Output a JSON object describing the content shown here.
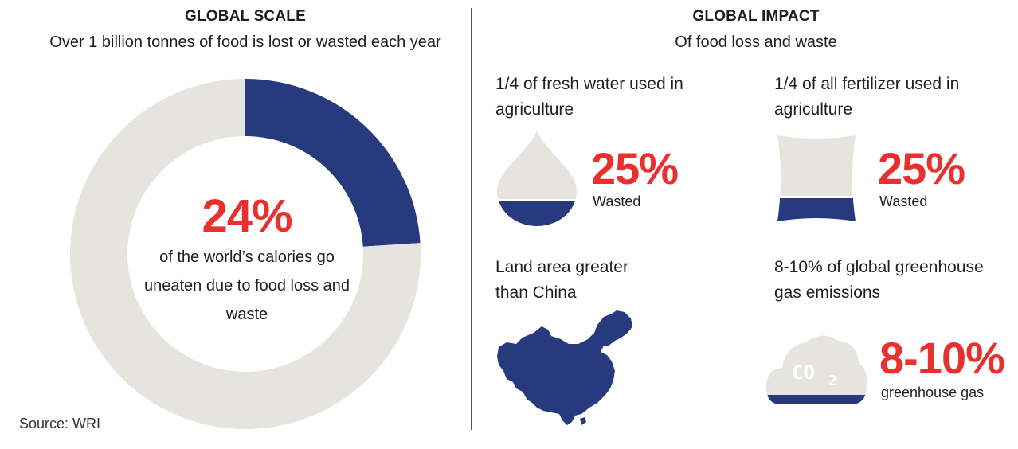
{
  "left": {
    "title": "GLOBAL SCALE",
    "subtitle": "Over 1 billion tonnes of food is lost or wasted each year",
    "center_value": "24%",
    "center_text": "of the world’s calories go uneaten due to food loss and waste",
    "source": "Source: WRI"
  },
  "right": {
    "title": "GLOBAL IMPACT",
    "subtitle": "Of food loss and waste",
    "water": {
      "label": "1/4 of fresh water used in agriculture",
      "value": "25%",
      "caption": "Wasted",
      "icon": "water-drop-icon",
      "fill_fraction": 0.25
    },
    "fertilizer": {
      "label": "1/4 of all fertilizer used in agriculture",
      "value": "25%",
      "caption": "Wasted",
      "icon": "fertilizer-bag-icon",
      "fill_fraction": 0.25
    },
    "land": {
      "label": "Land area greater than China",
      "icon": "china-map-icon"
    },
    "emissions": {
      "label": "8-10% of global greenhouse gas emissions",
      "value": "8-10%",
      "caption": "greenhouse gas",
      "icon": "co2-cloud-icon",
      "cloud_text": "CO",
      "cloud_sub": "2",
      "fill_fraction": 0.09
    }
  },
  "colors": {
    "navy": "#263a7d",
    "light": "#e5e4de",
    "red": "#e8312f"
  },
  "chart_data": {
    "type": "pie",
    "title": "GLOBAL SCALE",
    "subtitle": "Over 1 billion tonnes of food is lost or wasted each year",
    "donut": true,
    "slices": [
      {
        "label": "lost or wasted",
        "value": 24
      },
      {
        "label": "",
        "value": 76
      }
    ]
  }
}
